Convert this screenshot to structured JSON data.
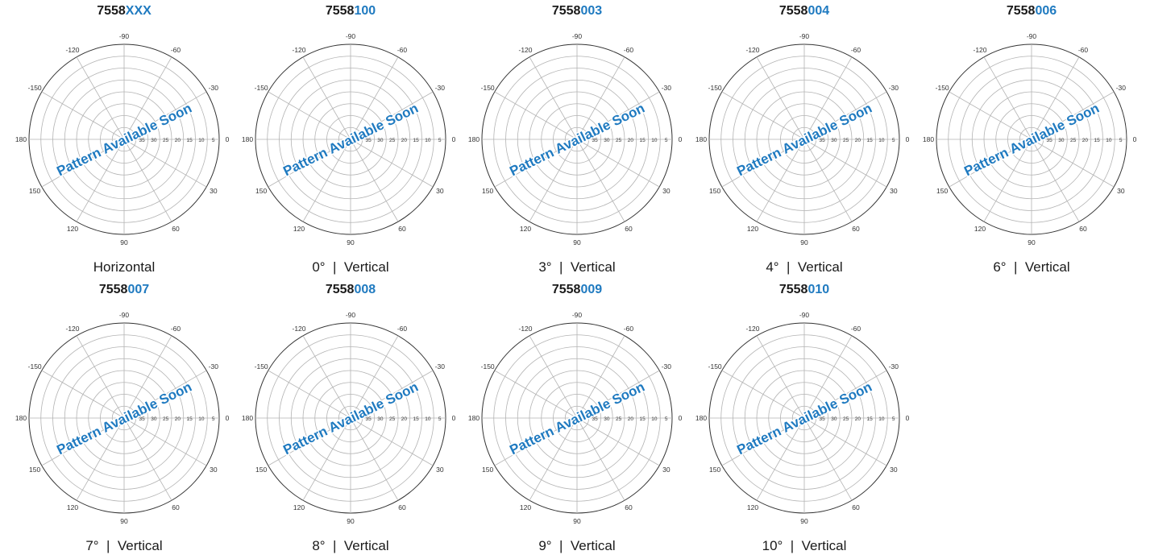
{
  "chart_data": [
    {
      "type": "polar",
      "title_prefix": "7558",
      "title_suffix": "XXX",
      "caption": "Horizontal",
      "overlay": "Pattern Available Soon",
      "angle_ticks": [
        "-90",
        "-60",
        "-30",
        "0",
        "30",
        "60",
        "90",
        "120",
        "150",
        "180",
        "-150",
        "-120"
      ],
      "radial_ticks": [
        "35",
        "30",
        "25",
        "20",
        "15",
        "10",
        "5"
      ],
      "series": []
    },
    {
      "type": "polar",
      "title_prefix": "7558",
      "title_suffix": "100",
      "caption": "0°  |  Vertical",
      "overlay": "Pattern Available Soon",
      "angle_ticks": [
        "-90",
        "-60",
        "-30",
        "0",
        "30",
        "60",
        "90",
        "120",
        "150",
        "180",
        "-150",
        "-120"
      ],
      "radial_ticks": [
        "35",
        "30",
        "25",
        "20",
        "15",
        "10",
        "5"
      ],
      "series": []
    },
    {
      "type": "polar",
      "title_prefix": "7558",
      "title_suffix": "003",
      "caption": "3°  |  Vertical",
      "overlay": "Pattern Available Soon",
      "angle_ticks": [
        "-90",
        "-60",
        "-30",
        "0",
        "30",
        "60",
        "90",
        "120",
        "150",
        "180",
        "-150",
        "-120"
      ],
      "radial_ticks": [
        "35",
        "30",
        "25",
        "20",
        "15",
        "10",
        "5"
      ],
      "series": []
    },
    {
      "type": "polar",
      "title_prefix": "7558",
      "title_suffix": "004",
      "caption": "4°  |  Vertical",
      "overlay": "Pattern Available Soon",
      "angle_ticks": [
        "-90",
        "-60",
        "-30",
        "0",
        "30",
        "60",
        "90",
        "120",
        "150",
        "180",
        "-150",
        "-120"
      ],
      "radial_ticks": [
        "35",
        "30",
        "25",
        "20",
        "15",
        "10",
        "5"
      ],
      "series": []
    },
    {
      "type": "polar",
      "title_prefix": "7558",
      "title_suffix": "006",
      "caption": "6°  |  Vertical",
      "overlay": "Pattern Available Soon",
      "angle_ticks": [
        "-90",
        "-60",
        "-30",
        "0",
        "30",
        "60",
        "90",
        "120",
        "150",
        "180",
        "-150",
        "-120"
      ],
      "radial_ticks": [
        "35",
        "30",
        "25",
        "20",
        "15",
        "10",
        "5"
      ],
      "series": []
    },
    {
      "type": "polar",
      "title_prefix": "7558",
      "title_suffix": "007",
      "caption": "7°  |  Vertical",
      "overlay": "Pattern Available Soon",
      "angle_ticks": [
        "-90",
        "-60",
        "-30",
        "0",
        "30",
        "60",
        "90",
        "120",
        "150",
        "180",
        "-150",
        "-120"
      ],
      "radial_ticks": [
        "35",
        "30",
        "25",
        "20",
        "15",
        "10",
        "5"
      ],
      "series": []
    },
    {
      "type": "polar",
      "title_prefix": "7558",
      "title_suffix": "008",
      "caption": "8°  |  Vertical",
      "overlay": "Pattern Available Soon",
      "angle_ticks": [
        "-90",
        "-60",
        "-30",
        "0",
        "30",
        "60",
        "90",
        "120",
        "150",
        "180",
        "-150",
        "-120"
      ],
      "radial_ticks": [
        "35",
        "30",
        "25",
        "20",
        "15",
        "10",
        "5"
      ],
      "series": []
    },
    {
      "type": "polar",
      "title_prefix": "7558",
      "title_suffix": "009",
      "caption": "9°  |  Vertical",
      "overlay": "Pattern Available Soon",
      "angle_ticks": [
        "-90",
        "-60",
        "-30",
        "0",
        "30",
        "60",
        "90",
        "120",
        "150",
        "180",
        "-150",
        "-120"
      ],
      "radial_ticks": [
        "35",
        "30",
        "25",
        "20",
        "15",
        "10",
        "5"
      ],
      "series": []
    },
    {
      "type": "polar",
      "title_prefix": "7558",
      "title_suffix": "010",
      "caption": "10°  |  Vertical",
      "overlay": "Pattern Available Soon",
      "angle_ticks": [
        "-90",
        "-60",
        "-30",
        "0",
        "30",
        "60",
        "90",
        "120",
        "150",
        "180",
        "-150",
        "-120"
      ],
      "radial_ticks": [
        "35",
        "30",
        "25",
        "20",
        "15",
        "10",
        "5"
      ],
      "series": []
    }
  ],
  "colors": {
    "accent": "#1f7ac0",
    "text": "#1a1a1a",
    "grid": "#b3b3b3",
    "outline": "#333333"
  }
}
